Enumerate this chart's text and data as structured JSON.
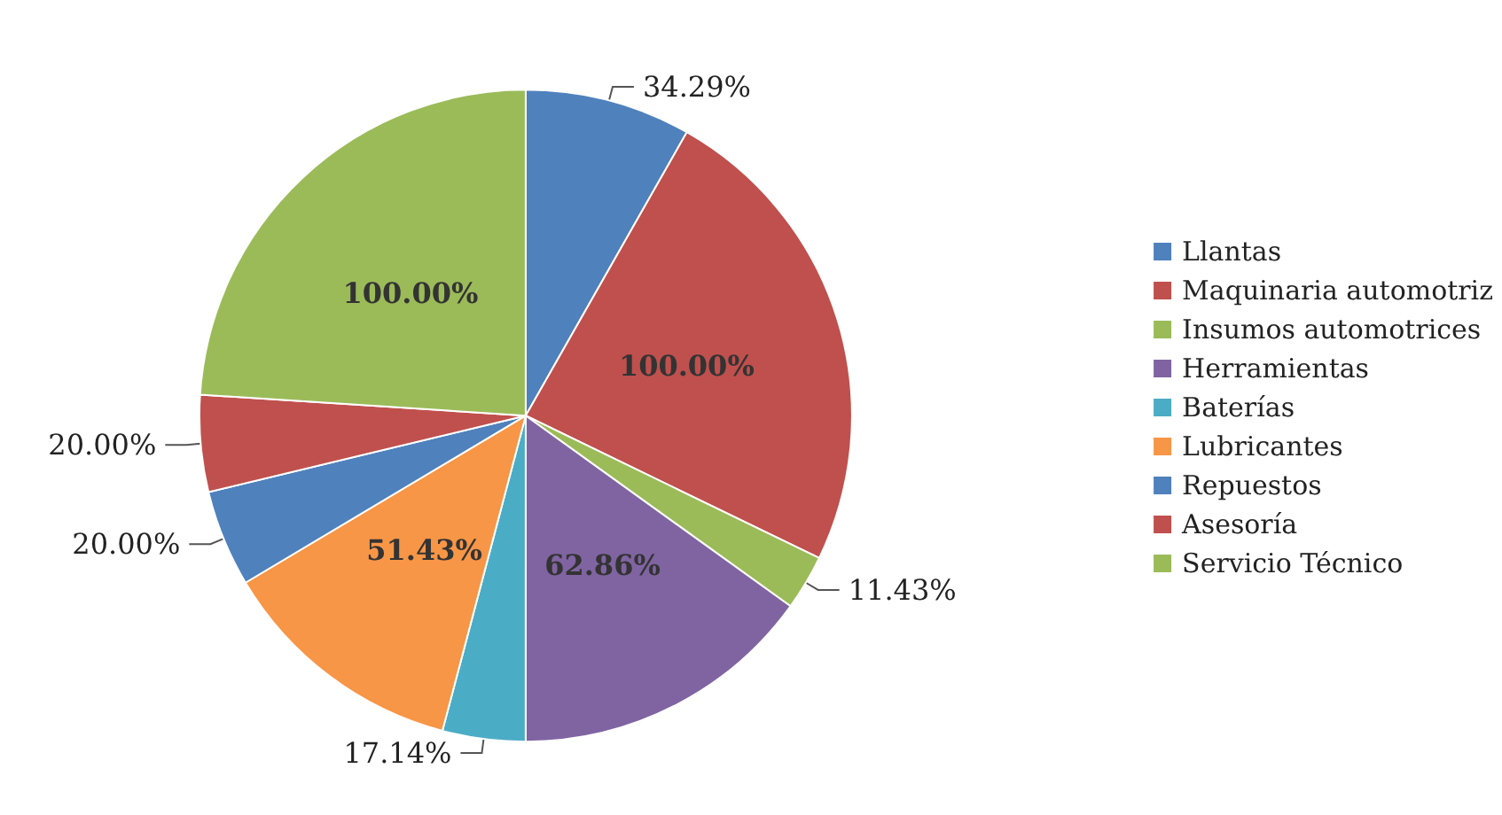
{
  "chart_data": {
    "type": "pie",
    "categories": [
      "Llantas",
      "Maquinaria automotriz",
      "Insumos automotrices",
      "Herramientas",
      "Baterías",
      "Lubricantes",
      "Repuestos",
      "Asesoría",
      "Servicio Técnico"
    ],
    "values": [
      34.29,
      100,
      11.43,
      62.86,
      17.14,
      51.43,
      20,
      20,
      100
    ],
    "value_labels": [
      "34.29%",
      "100.00%",
      "11.43%",
      "62.86%",
      "17.14%",
      "51.43%",
      "20.00%",
      "20.00%",
      "100.00%"
    ],
    "colors": [
      "#4f81bd",
      "#c0504d",
      "#9bbb59",
      "#8064a2",
      "#4bacc6",
      "#f79646",
      "#4f81bd",
      "#c0504d",
      "#9bbb59"
    ],
    "legend": "right"
  }
}
